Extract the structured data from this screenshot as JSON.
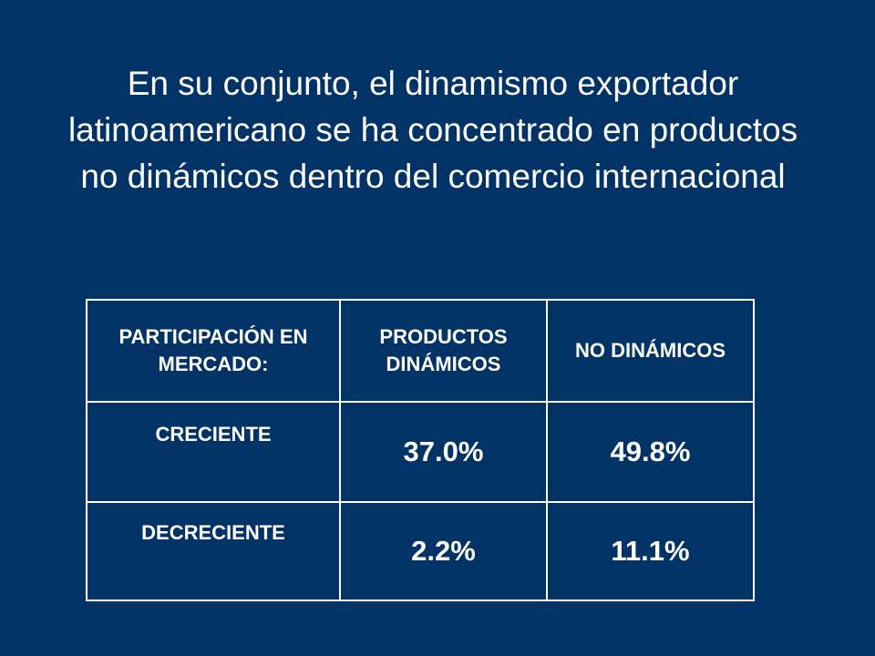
{
  "slide": {
    "title": "En su conjunto, el dinamismo exportador latinoamericano se ha concentrado en productos no dinámicos dentro del comercio internacional"
  },
  "table": {
    "headers": [
      "PARTICIPACIÓN EN MERCADO:",
      "PRODUCTOS DINÁMICOS",
      "NO DINÁMICOS"
    ],
    "rows": [
      {
        "label": "CRECIENTE",
        "dinamicos": "37.0%",
        "no_dinamicos": "49.8%"
      },
      {
        "label": "DECRECIENTE",
        "dinamicos": "2.2%",
        "no_dinamicos": "11.1%"
      }
    ]
  },
  "colors": {
    "background": "#013366",
    "text": "#ffffff",
    "table_border": "#ffffff"
  }
}
